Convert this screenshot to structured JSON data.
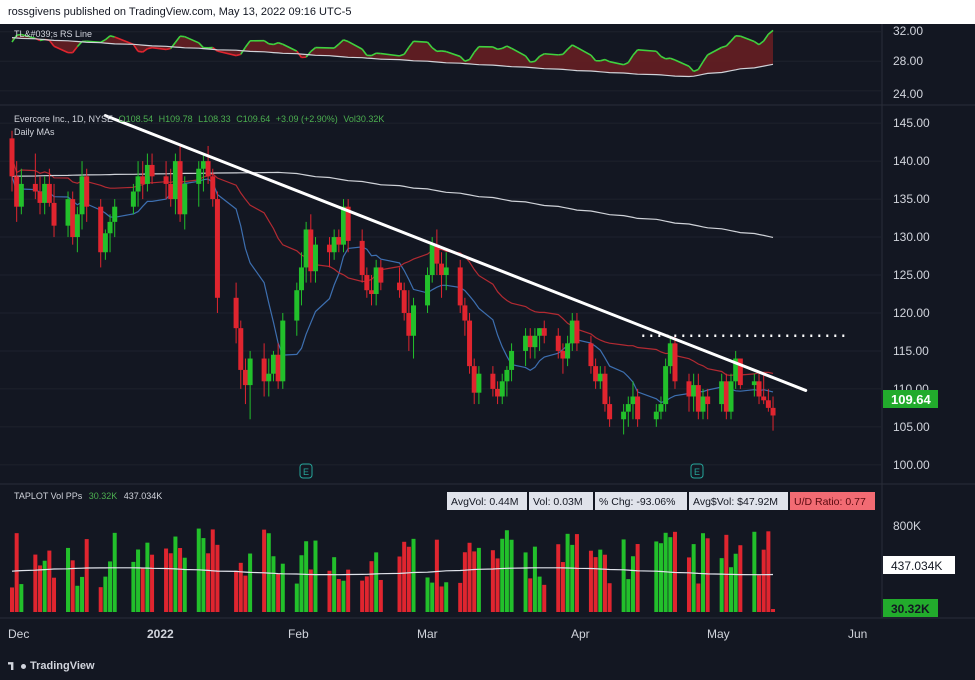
{
  "header": {
    "publisher": "rossgivens published on TradingView.com, May 13, 2022 09:16 UTC-5"
  },
  "footer": {
    "logo_text": "TradingView"
  },
  "rs_pane": {
    "title": "TL&#039;s RS Line",
    "axis_ticks": [
      "32.00",
      "28.00",
      "24.00"
    ]
  },
  "price_pane": {
    "ohlc_prefix": "Evercore Inc., 1D, NYSE",
    "open": "O108.54",
    "high": "H109.78",
    "low": "L108.33",
    "close": "C109.64",
    "change": "+3.09 (+2.90%)",
    "vol": "Vol30.32K",
    "ma_label": "Daily MAs",
    "last_price": "109.64",
    "axis_ticks": [
      "145.00",
      "140.00",
      "135.00",
      "130.00",
      "125.00",
      "120.00",
      "115.00",
      "110.00",
      "105.00",
      "100.00"
    ],
    "earnings_marker": "E"
  },
  "volume_pane": {
    "title": "TAPLOT Vol PPs",
    "vol_value": "30.32K",
    "avg_value": "437.034K",
    "badges": [
      {
        "text": "AvgVol: 0.44M",
        "style": "light"
      },
      {
        "text": "Vol: 0.03M",
        "style": "light"
      },
      {
        "text": "% Chg: -93.06%",
        "style": "light"
      },
      {
        "text": "Avg$Vol: $47.92M",
        "style": "light"
      },
      {
        "text": "U/D Ratio: 0.77",
        "style": "red"
      }
    ],
    "axis_tick": "800K",
    "avg_label": "437.034K",
    "vol_label": "30.32K"
  },
  "x_axis": {
    "labels": [
      "Dec",
      "2022",
      "Feb",
      "Mar",
      "Apr",
      "May",
      "Jun"
    ]
  },
  "colors": {
    "background": "#131722",
    "up": "#4caf50",
    "down": "#f23645",
    "up_bright": "#22c02b",
    "down_bright": "#e0252f",
    "ma_red": "#b22a32",
    "ma_blue": "#3d6fb0",
    "ma_white": "#cfd2d8",
    "trendline": "#ffffff",
    "grid": "#1e222d"
  },
  "chart_data": [
    {
      "type": "candlestick",
      "title": "Evercore Inc., 1D, NYSE",
      "ylim": [
        98,
        147
      ],
      "x": [
        "2021-12-01",
        "2021-12-02",
        "2021-12-03",
        "2021-12-06",
        "2021-12-07",
        "2021-12-08",
        "2021-12-09",
        "2021-12-10",
        "2021-12-13",
        "2021-12-14",
        "2021-12-15",
        "2021-12-16",
        "2021-12-17",
        "2021-12-20",
        "2021-12-21",
        "2021-12-22",
        "2021-12-23",
        "2021-12-27",
        "2021-12-28",
        "2021-12-29",
        "2021-12-30",
        "2021-12-31",
        "2022-01-03",
        "2022-01-04",
        "2022-01-05",
        "2022-01-06",
        "2022-01-07",
        "2022-01-10",
        "2022-01-11",
        "2022-01-12",
        "2022-01-13",
        "2022-01-14",
        "2022-01-18",
        "2022-01-19",
        "2022-01-20",
        "2022-01-21",
        "2022-01-24",
        "2022-01-25",
        "2022-01-26",
        "2022-01-27",
        "2022-01-28",
        "2022-01-31",
        "2022-02-01",
        "2022-02-02",
        "2022-02-03",
        "2022-02-04",
        "2022-02-07",
        "2022-02-08",
        "2022-02-09",
        "2022-02-10",
        "2022-02-11",
        "2022-02-14",
        "2022-02-15",
        "2022-02-16",
        "2022-02-17",
        "2022-02-18",
        "2022-02-22",
        "2022-02-23",
        "2022-02-24",
        "2022-02-25",
        "2022-02-28",
        "2022-03-01",
        "2022-03-02",
        "2022-03-03",
        "2022-03-04",
        "2022-03-07",
        "2022-03-08",
        "2022-03-09",
        "2022-03-10",
        "2022-03-11",
        "2022-03-14",
        "2022-03-15",
        "2022-03-16",
        "2022-03-17",
        "2022-03-18",
        "2022-03-21",
        "2022-03-22",
        "2022-03-23",
        "2022-03-24",
        "2022-03-25",
        "2022-03-28",
        "2022-03-29",
        "2022-03-30",
        "2022-03-31",
        "2022-04-01",
        "2022-04-04",
        "2022-04-05",
        "2022-04-06",
        "2022-04-07",
        "2022-04-08",
        "2022-04-11",
        "2022-04-12",
        "2022-04-13",
        "2022-04-14",
        "2022-04-18",
        "2022-04-19",
        "2022-04-20",
        "2022-04-21",
        "2022-04-22",
        "2022-04-25",
        "2022-04-26",
        "2022-04-27",
        "2022-04-28",
        "2022-04-29",
        "2022-05-02",
        "2022-05-03",
        "2022-05-04",
        "2022-05-05",
        "2022-05-06",
        "2022-05-09",
        "2022-05-10",
        "2022-05-11",
        "2022-05-12",
        "2022-05-13"
      ],
      "ohlc": [
        [
          143,
          144,
          136,
          138
        ],
        [
          138,
          140,
          132,
          134
        ],
        [
          134,
          139,
          133,
          137
        ],
        [
          137,
          141,
          135,
          136
        ],
        [
          136,
          138,
          133,
          134.5
        ],
        [
          134.5,
          138,
          133,
          137
        ],
        [
          137,
          139,
          134,
          134.5
        ],
        [
          134.5,
          137,
          130,
          131.5
        ],
        [
          131.5,
          136,
          130,
          135
        ],
        [
          135,
          136,
          129,
          130
        ],
        [
          130,
          134,
          128,
          133
        ],
        [
          133,
          140,
          131,
          138
        ],
        [
          138,
          139,
          132,
          134
        ],
        [
          134,
          135,
          126,
          128
        ],
        [
          128,
          131,
          127,
          130.5
        ],
        [
          130.5,
          133,
          128,
          132
        ],
        [
          132,
          135,
          130,
          134
        ],
        [
          134,
          137,
          133,
          136
        ],
        [
          136,
          140,
          134,
          138
        ],
        [
          138,
          140,
          135,
          137
        ],
        [
          137,
          141,
          136,
          139.5
        ],
        [
          139.5,
          141,
          137,
          138
        ],
        [
          138,
          140,
          135,
          137
        ],
        [
          137,
          139,
          134,
          135
        ],
        [
          135,
          141,
          133,
          140
        ],
        [
          140,
          142,
          132,
          133
        ],
        [
          133,
          138,
          131,
          137
        ],
        [
          137,
          140,
          134,
          139
        ],
        [
          139,
          141,
          136,
          140
        ],
        [
          140,
          142,
          137,
          138
        ],
        [
          138,
          139,
          134,
          135
        ],
        [
          135,
          136,
          120,
          122
        ],
        [
          122,
          124,
          116,
          118
        ],
        [
          118,
          119,
          110,
          112.5
        ],
        [
          112.5,
          114,
          108,
          110.5
        ],
        [
          110.5,
          115,
          106,
          114
        ],
        [
          114,
          116,
          109,
          111
        ],
        [
          111,
          114,
          109,
          112
        ],
        [
          112,
          115,
          111,
          114.5
        ],
        [
          114.5,
          116,
          110,
          111
        ],
        [
          111,
          120,
          110,
          119
        ],
        [
          119,
          124,
          117,
          123
        ],
        [
          123,
          128,
          121,
          126
        ],
        [
          126,
          132,
          124,
          131
        ],
        [
          131,
          133,
          124,
          125.5
        ],
        [
          125.5,
          130,
          124,
          129
        ],
        [
          129,
          130,
          126,
          128
        ],
        [
          128,
          131,
          127,
          130
        ],
        [
          130,
          131,
          128,
          129
        ],
        [
          129,
          135,
          128,
          134
        ],
        [
          134,
          135,
          128,
          129.5
        ],
        [
          129.5,
          131,
          124,
          125
        ],
        [
          125,
          126,
          122,
          123
        ],
        [
          123,
          125,
          121,
          122.5
        ],
        [
          122.5,
          127,
          121,
          126
        ],
        [
          126,
          127,
          123,
          124
        ],
        [
          124,
          126,
          122,
          123
        ],
        [
          123,
          124,
          119,
          120
        ],
        [
          120,
          123,
          115,
          117
        ],
        [
          117,
          122,
          114,
          121
        ],
        [
          121,
          126,
          120,
          125
        ],
        [
          125,
          130,
          124,
          129
        ],
        [
          129,
          131,
          125,
          126.5
        ],
        [
          126.5,
          128,
          122,
          125
        ],
        [
          125,
          128,
          123,
          126
        ],
        [
          126,
          127,
          120,
          121
        ],
        [
          121,
          122,
          117,
          119
        ],
        [
          119,
          120,
          112,
          113
        ],
        [
          113,
          114,
          108,
          109.5
        ],
        [
          109.5,
          113,
          108,
          112
        ],
        [
          112,
          113,
          109,
          110
        ],
        [
          110,
          111,
          108,
          109
        ],
        [
          109,
          112,
          108,
          111
        ],
        [
          111,
          113,
          109,
          112.5
        ],
        [
          112.5,
          116,
          111,
          115
        ],
        [
          115,
          118,
          113,
          117
        ],
        [
          117,
          118,
          114,
          115.5
        ],
        [
          115.5,
          118,
          114,
          117
        ],
        [
          117,
          118,
          115,
          118
        ],
        [
          118,
          119,
          116,
          117
        ],
        [
          117,
          118,
          114,
          115
        ],
        [
          115,
          116,
          112,
          114
        ],
        [
          114,
          117,
          113,
          116
        ],
        [
          116,
          120,
          115,
          119
        ],
        [
          119,
          120,
          115,
          116
        ],
        [
          116,
          117,
          112,
          113
        ],
        [
          113,
          114,
          110,
          111
        ],
        [
          111,
          113,
          110,
          112
        ],
        [
          112,
          113,
          107,
          108
        ],
        [
          108,
          109,
          105,
          106
        ],
        [
          106,
          108,
          104,
          107
        ],
        [
          107,
          109,
          105,
          108
        ],
        [
          108,
          111,
          106,
          109
        ],
        [
          109,
          110,
          105,
          106
        ],
        [
          106,
          108,
          105,
          107
        ],
        [
          107,
          109,
          106,
          108
        ],
        [
          108,
          114,
          107,
          113
        ],
        [
          113,
          117,
          112,
          116
        ],
        [
          116,
          117,
          110,
          111
        ],
        [
          111,
          112,
          107,
          109
        ],
        [
          109,
          112,
          107,
          110.5
        ],
        [
          110.5,
          112,
          106,
          107
        ],
        [
          107,
          110,
          106,
          109
        ],
        [
          109,
          110,
          106,
          108
        ],
        [
          108,
          112,
          107,
          111
        ],
        [
          111,
          112,
          106,
          107
        ],
        [
          107,
          112,
          106,
          111
        ],
        [
          111,
          115,
          110,
          114
        ],
        [
          114,
          114,
          110,
          110.5
        ],
        [
          110.5,
          112,
          109,
          111
        ],
        [
          111,
          112,
          108,
          109
        ],
        [
          109,
          112,
          108,
          108.5
        ],
        [
          108.5,
          110,
          107,
          107.5
        ],
        [
          107.5,
          109,
          104.5,
          106.5
        ],
        [
          108.54,
          109.78,
          108.33,
          109.64
        ]
      ],
      "moving_averages": [
        {
          "name": "MA red",
          "color": "#b22a32"
        },
        {
          "name": "MA blue",
          "color": "#3d6fb0"
        },
        {
          "name": "MA white",
          "color": "#cfd2d8"
        }
      ],
      "last_price": 109.64,
      "horizontal_level": 117,
      "trendline": [
        [
          "2021-12-21",
          146
        ],
        [
          "2022-05-20",
          109.8
        ]
      ]
    },
    {
      "type": "area",
      "title": "TL&#039;s RS Line",
      "ylim": [
        22.5,
        32.5
      ],
      "y_ticks": [
        32,
        28,
        24
      ]
    },
    {
      "type": "bar",
      "title": "TAPLOT Vol PPs",
      "y_ticks": [
        "800K"
      ],
      "average": 437034,
      "last": 30320
    }
  ]
}
